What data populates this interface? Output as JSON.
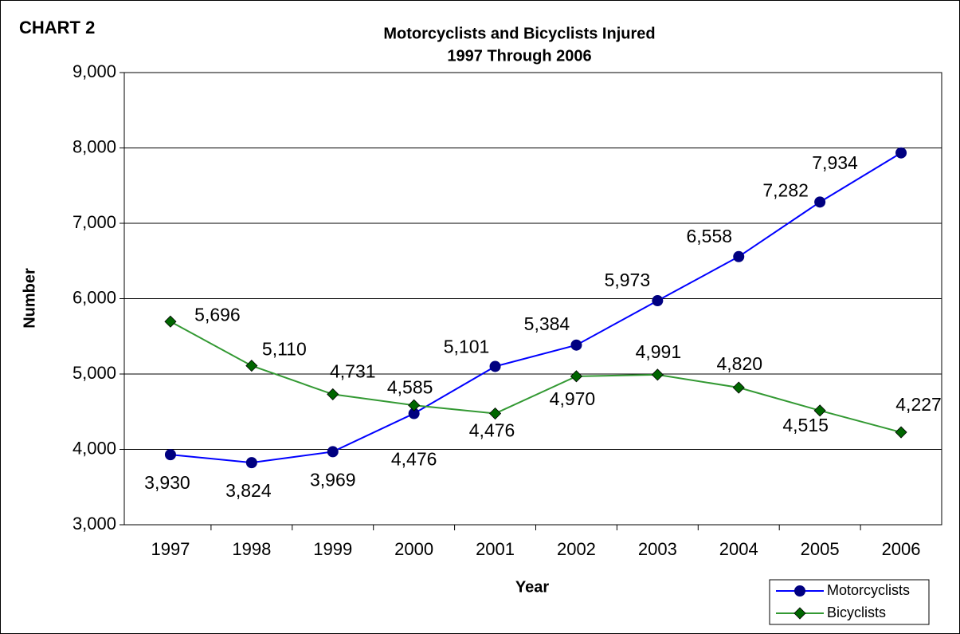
{
  "chart_data": {
    "type": "line",
    "label": "CHART 2",
    "title": "Motorcyclists and Bicyclists Injured",
    "subtitle": "1997 Through 2006",
    "x_label": "Year",
    "y_label": "Number",
    "categories": [
      "1997",
      "1998",
      "1999",
      "2000",
      "2001",
      "2002",
      "2003",
      "2004",
      "2005",
      "2006"
    ],
    "series": [
      {
        "name": "Motorcyclists",
        "color": "#0000ff",
        "marker": "circle",
        "marker_color": "#000080",
        "values": [
          3930,
          3824,
          3969,
          4476,
          5101,
          5384,
          5973,
          6558,
          7282,
          7934
        ],
        "value_labels": [
          "3,930",
          "3,824",
          "3,969",
          "4,476",
          "5,101",
          "5,384",
          "5,973",
          "6,558",
          "7,282",
          "7,934"
        ]
      },
      {
        "name": "Bicyclists",
        "color": "#339933",
        "marker": "diamond",
        "marker_color": "#006600",
        "values": [
          5696,
          5110,
          4731,
          4585,
          4476,
          4970,
          4991,
          4820,
          4515,
          4227
        ],
        "value_labels": [
          "5,696",
          "5,110",
          "4,731",
          "4,585",
          "4,476",
          "4,970",
          "4,991",
          "4,820",
          "4,515",
          "4,227"
        ]
      }
    ],
    "ylim": [
      3000,
      9000
    ],
    "yticks": [
      {
        "value": 3000,
        "label": "3,000"
      },
      {
        "value": 4000,
        "label": "4,000"
      },
      {
        "value": 5000,
        "label": "5,000"
      },
      {
        "value": 6000,
        "label": "6,000"
      },
      {
        "value": 7000,
        "label": "7,000"
      },
      {
        "value": 8000,
        "label": "8,000"
      },
      {
        "value": 9000,
        "label": "9,000"
      }
    ],
    "grid": true,
    "legend": "bottom-right"
  }
}
